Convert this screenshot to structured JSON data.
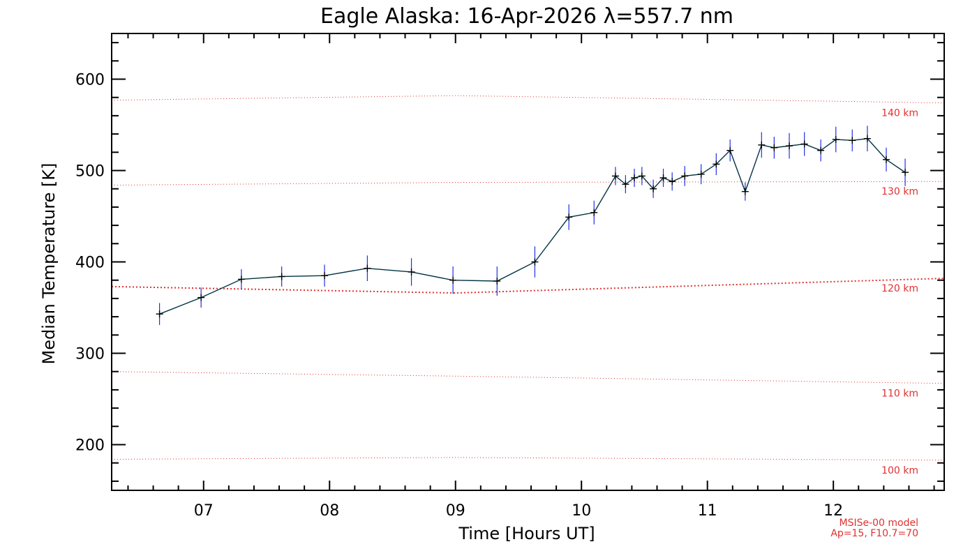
{
  "chart_data": {
    "type": "line",
    "title": "Eagle Alaska: 16-Apr-2026 λ=557.7 nm",
    "xlabel": "Time [Hours UT]",
    "ylabel": "Median Temperature [K]",
    "xlim": [
      6.27,
      12.88
    ],
    "ylim": [
      150,
      650
    ],
    "xticks": [
      7,
      8,
      9,
      10,
      11,
      12
    ],
    "xtick_labels": [
      "07",
      "08",
      "09",
      "10",
      "11",
      "12"
    ],
    "yticks": [
      200,
      300,
      400,
      500,
      600
    ],
    "ytick_labels": [
      "200",
      "300",
      "400",
      "500",
      "600"
    ],
    "grid": false,
    "series": [
      {
        "name": "Median Temperature",
        "color": "#003344",
        "errorbar_color": "#2030e0",
        "x": [
          6.65,
          6.98,
          7.3,
          7.62,
          7.96,
          8.3,
          8.65,
          8.98,
          9.33,
          9.63,
          9.9,
          10.1,
          10.27,
          10.35,
          10.42,
          10.48,
          10.57,
          10.65,
          10.72,
          10.82,
          10.95,
          11.07,
          11.18,
          11.3,
          11.43,
          11.53,
          11.65,
          11.77,
          11.9,
          12.02,
          12.15,
          12.27,
          12.42,
          12.57
        ],
        "y": [
          343,
          361,
          381,
          384,
          385,
          393,
          389,
          380,
          379,
          400,
          449,
          454,
          494,
          485,
          492,
          494,
          480,
          492,
          488,
          494,
          496,
          507,
          522,
          477,
          528,
          525,
          527,
          529,
          522,
          534,
          533,
          535,
          512,
          498
        ],
        "err": [
          12,
          11,
          11,
          11,
          12,
          14,
          15,
          15,
          16,
          17,
          14,
          13,
          10,
          10,
          10,
          10,
          10,
          10,
          10,
          11,
          11,
          12,
          12,
          10,
          14,
          12,
          14,
          13,
          12,
          14,
          12,
          14,
          13,
          15
        ]
      }
    ],
    "model_lines": [
      {
        "label": "100 km",
        "x": [
          6.27,
          9.0,
          12.88
        ],
        "y": [
          184,
          186,
          183
        ]
      },
      {
        "label": "110 km",
        "x": [
          6.27,
          9.0,
          12.88
        ],
        "y": [
          280,
          275,
          267
        ]
      },
      {
        "label": "120 km",
        "x": [
          6.27,
          9.0,
          12.88
        ],
        "y": [
          373,
          366,
          382
        ]
      },
      {
        "label": "130 km",
        "x": [
          6.27,
          9.0,
          12.88
        ],
        "y": [
          484,
          487,
          488
        ]
      },
      {
        "label": "140 km",
        "x": [
          6.27,
          9.0,
          12.88
        ],
        "y": [
          577,
          582,
          574
        ]
      }
    ],
    "model_note_line1": "MSISe-00 model",
    "model_note_line2": "Ap=15, F10.7=70",
    "colors": {
      "model": "#e03030",
      "data_line": "#003344",
      "errorbar": "#2030e0",
      "marker": "#000000"
    }
  }
}
